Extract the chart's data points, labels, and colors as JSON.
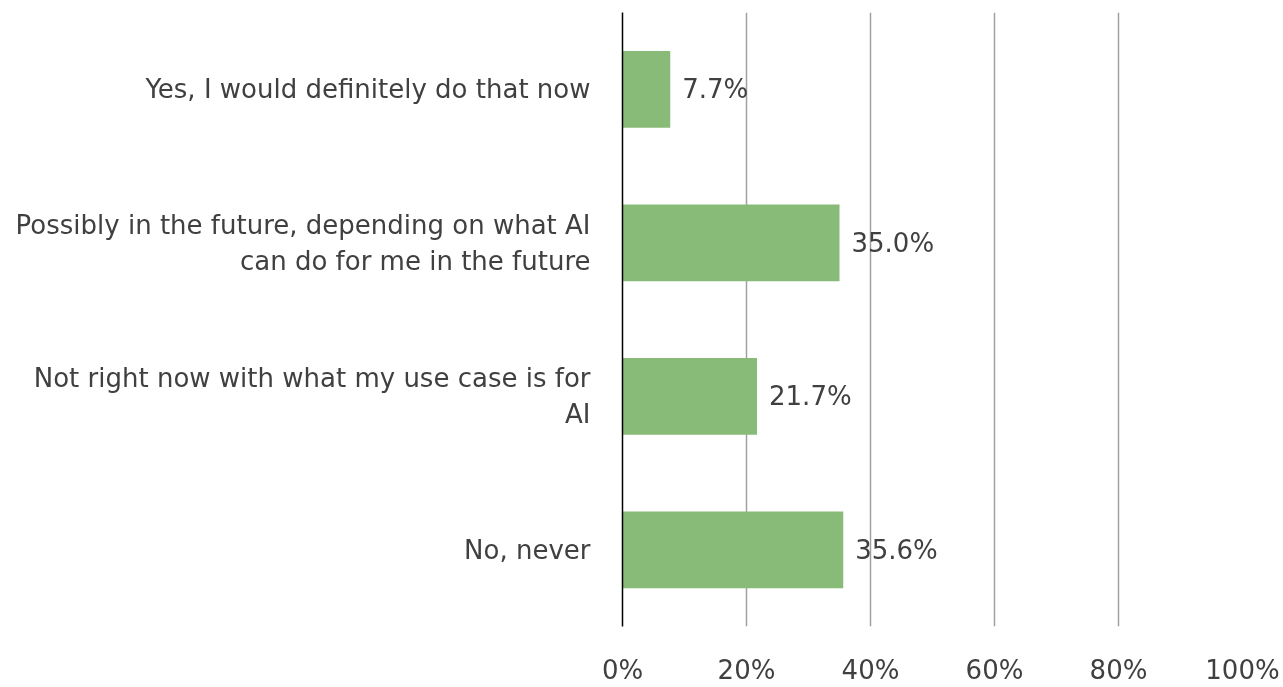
{
  "chart_data": {
    "type": "bar",
    "orientation": "horizontal",
    "categories": [
      "Yes, I would definitely do that now",
      "Possibly in the future, depending on what AI can do for me in the future",
      "Not right now with what my use case is for AI",
      "No, never"
    ],
    "values": [
      7.7,
      35.0,
      21.7,
      35.6
    ],
    "value_labels": [
      "7.7%",
      "35.0%",
      "21.7%",
      "35.6%"
    ],
    "color": "#88bb77",
    "xlim": [
      0,
      100
    ],
    "xticks": [
      {
        "value": 0,
        "label": "0%"
      },
      {
        "value": 20,
        "label": "20%"
      },
      {
        "value": 40,
        "label": "40%"
      },
      {
        "value": 60,
        "label": "60%"
      },
      {
        "value": 80,
        "label": "80%"
      },
      {
        "value": 100,
        "label": "100%"
      }
    ],
    "grid": "x"
  }
}
